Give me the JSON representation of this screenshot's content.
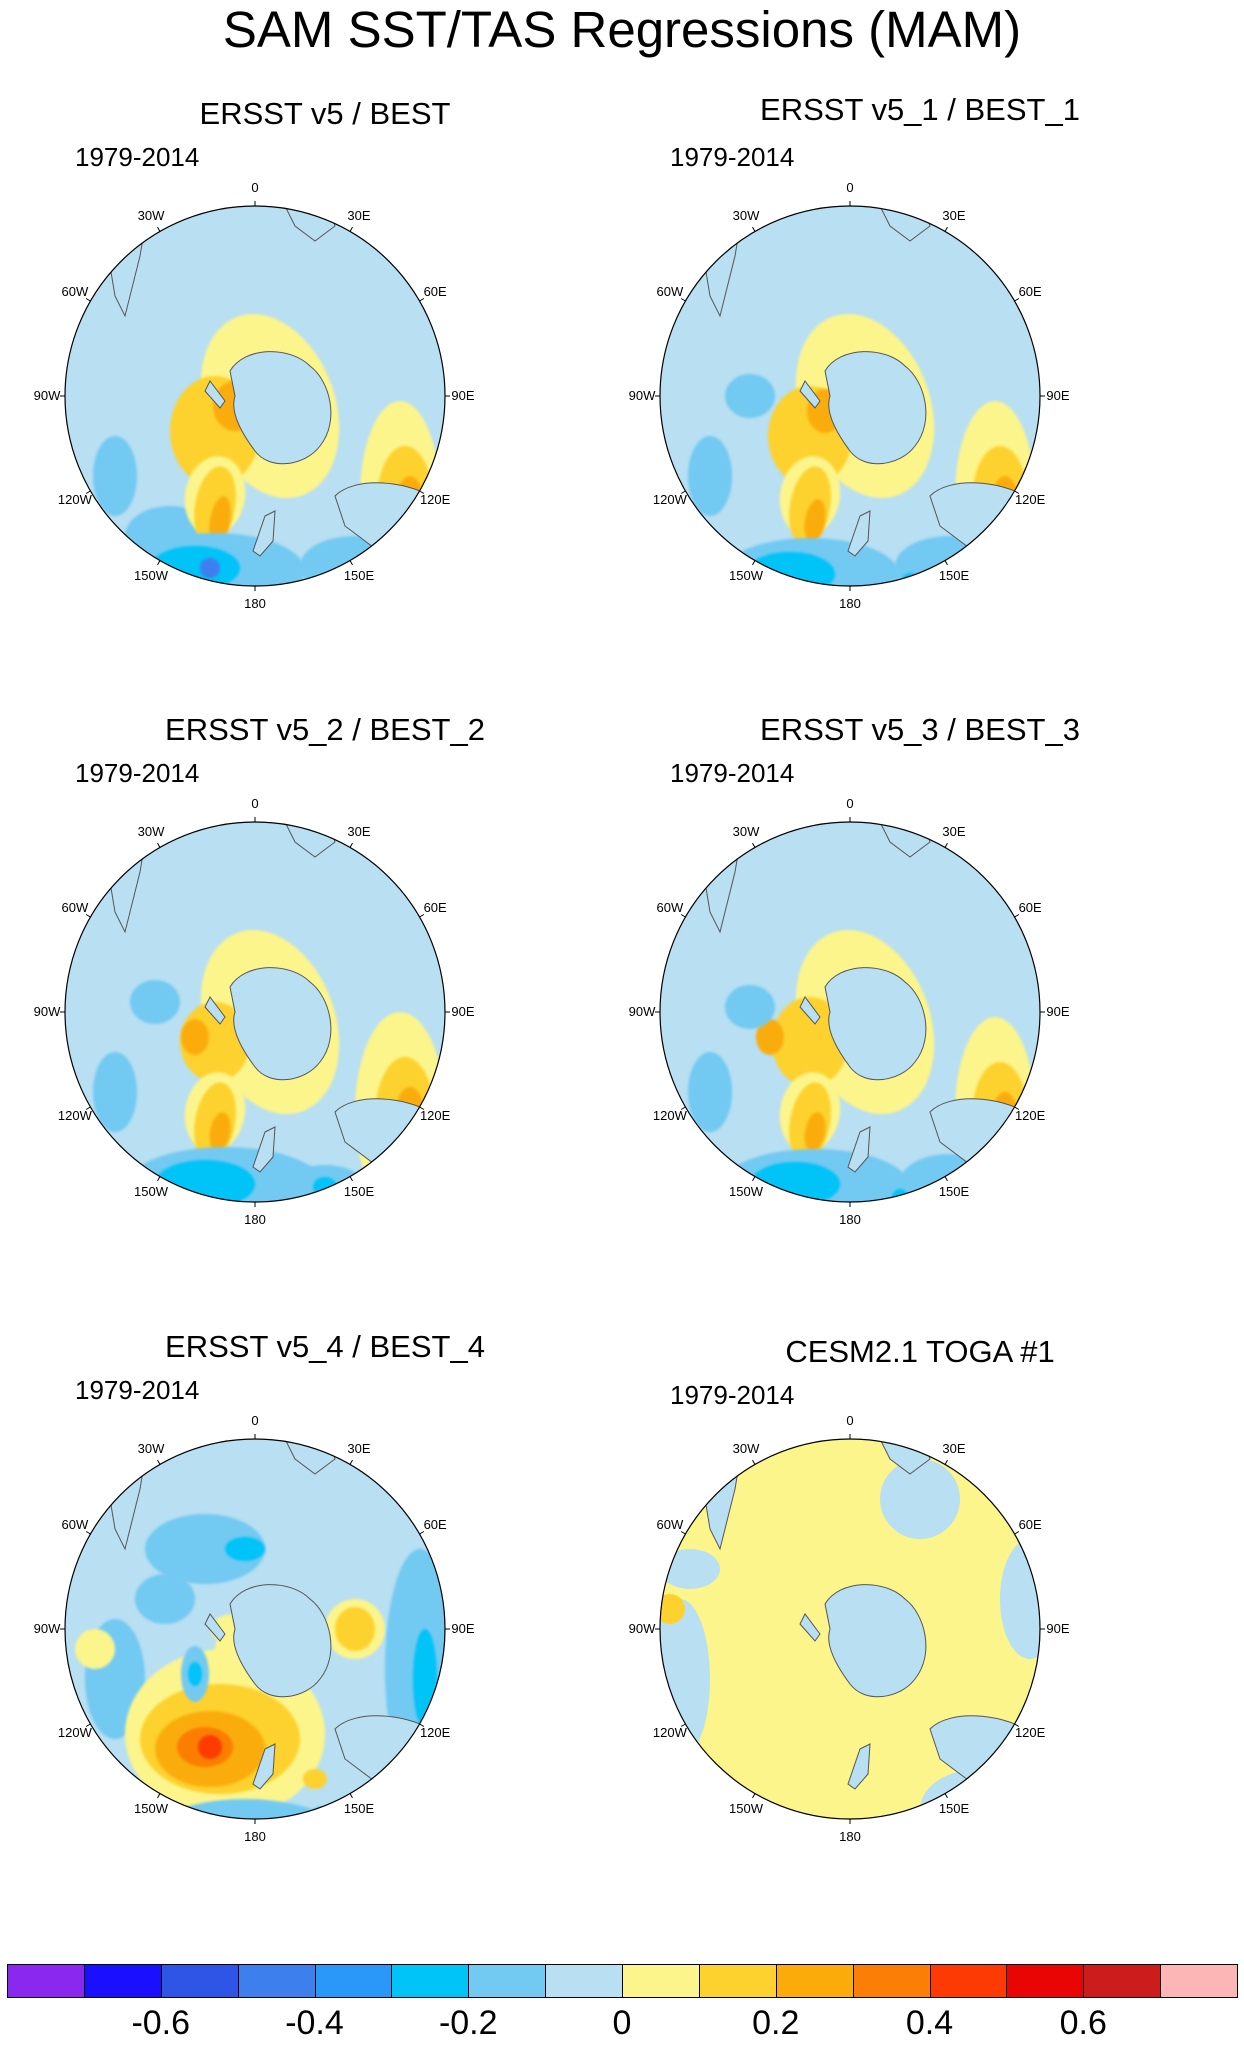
{
  "figure": {
    "title": "SAM SST/TAS Regressions (MAM)"
  },
  "lon_labels": [
    "0",
    "30E",
    "60E",
    "90E",
    "120E",
    "150E",
    "180",
    "150W",
    "120W",
    "90W",
    "60W",
    "30W"
  ],
  "panels": [
    {
      "title": "ERSST v5 / BEST",
      "period": "1979-2014"
    },
    {
      "title": "ERSST v5_1 / BEST_1",
      "period": "1979-2014"
    },
    {
      "title": "ERSST v5_2 / BEST_2",
      "period": "1979-2014"
    },
    {
      "title": "ERSST v5_3 / BEST_3",
      "period": "1979-2014"
    },
    {
      "title": "ERSST v5_4 / BEST_4",
      "period": "1979-2014"
    },
    {
      "title": "CESM2.1 TOGA #1",
      "period": "1979-2014"
    }
  ],
  "colorbar": {
    "colors": [
      "#8a28f0",
      "#1a10ff",
      "#2e55e6",
      "#3e7fee",
      "#2a98f8",
      "#00c3f7",
      "#72c9f2",
      "#b8dff2",
      "#fcf58c",
      "#fdd22e",
      "#fbac0b",
      "#fb7e06",
      "#fe3a04",
      "#e80503",
      "#cc1c1c",
      "#fcb6b6"
    ],
    "labels": [
      "-0.6",
      "-0.4",
      "-0.2",
      "0",
      "0.2",
      "0.4",
      "0.6"
    ],
    "label_values": [
      -0.6,
      -0.4,
      -0.2,
      0,
      0.2,
      0.4,
      0.6
    ]
  }
}
